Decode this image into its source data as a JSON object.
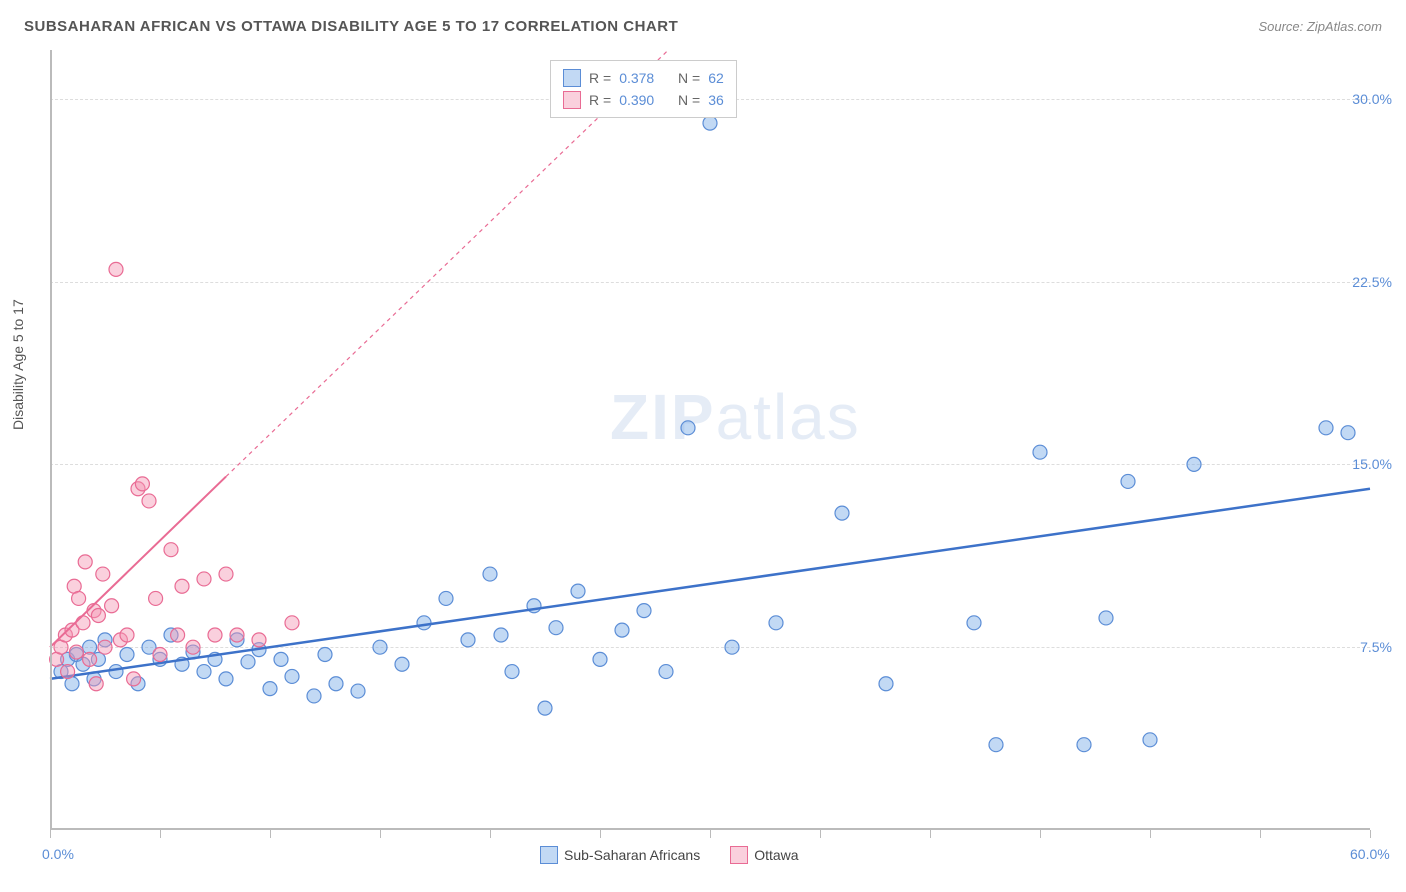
{
  "header": {
    "title": "SUBSAHARAN AFRICAN VS OTTAWA DISABILITY AGE 5 TO 17 CORRELATION CHART",
    "source_prefix": "Source: ",
    "source_name": "ZipAtlas.com"
  },
  "chart": {
    "type": "scatter",
    "ylabel": "Disability Age 5 to 17",
    "xlim": [
      0,
      60
    ],
    "ylim": [
      0,
      32
    ],
    "xtick_positions": [
      0,
      5,
      10,
      15,
      20,
      25,
      30,
      35,
      40,
      45,
      50,
      55,
      60
    ],
    "xtick_labels_shown": {
      "0": "0.0%",
      "60": "60.0%"
    },
    "ytick_positions": [
      7.5,
      15.0,
      22.5,
      30.0
    ],
    "ytick_labels": [
      "7.5%",
      "15.0%",
      "22.5%",
      "30.0%"
    ],
    "grid_color": "#dddddd",
    "axis_color": "#bbbbbb",
    "background_color": "#ffffff",
    "series": [
      {
        "name": "Sub-Saharan Africans",
        "marker_color_fill": "rgba(120,170,230,0.45)",
        "marker_color_stroke": "#5b8dd6",
        "marker_radius": 7,
        "trend_color": "#3d72c9",
        "trend_width": 2.5,
        "trend_dash": "none",
        "trend_p1": [
          0,
          6.2
        ],
        "trend_p2": [
          60,
          14.0
        ],
        "R": "0.378",
        "N": "62",
        "points": [
          [
            0.5,
            6.5
          ],
          [
            0.8,
            7.0
          ],
          [
            1.0,
            6.0
          ],
          [
            1.2,
            7.2
          ],
          [
            1.5,
            6.8
          ],
          [
            1.8,
            7.5
          ],
          [
            2.0,
            6.2
          ],
          [
            2.2,
            7.0
          ],
          [
            2.5,
            7.8
          ],
          [
            3.0,
            6.5
          ],
          [
            3.5,
            7.2
          ],
          [
            4.0,
            6.0
          ],
          [
            4.5,
            7.5
          ],
          [
            5.0,
            7.0
          ],
          [
            5.5,
            8.0
          ],
          [
            6.0,
            6.8
          ],
          [
            6.5,
            7.3
          ],
          [
            7.0,
            6.5
          ],
          [
            7.5,
            7.0
          ],
          [
            8.0,
            6.2
          ],
          [
            8.5,
            7.8
          ],
          [
            9.0,
            6.9
          ],
          [
            9.5,
            7.4
          ],
          [
            10.0,
            5.8
          ],
          [
            10.5,
            7.0
          ],
          [
            11.0,
            6.3
          ],
          [
            12.0,
            5.5
          ],
          [
            12.5,
            7.2
          ],
          [
            13.0,
            6.0
          ],
          [
            14.0,
            5.7
          ],
          [
            15.0,
            7.5
          ],
          [
            16.0,
            6.8
          ],
          [
            17.0,
            8.5
          ],
          [
            18.0,
            9.5
          ],
          [
            19.0,
            7.8
          ],
          [
            20.0,
            10.5
          ],
          [
            20.5,
            8.0
          ],
          [
            21.0,
            6.5
          ],
          [
            22.0,
            9.2
          ],
          [
            22.5,
            5.0
          ],
          [
            23.0,
            8.3
          ],
          [
            24.0,
            9.8
          ],
          [
            25.0,
            7.0
          ],
          [
            26.0,
            8.2
          ],
          [
            27.0,
            9.0
          ],
          [
            28.0,
            6.5
          ],
          [
            29.0,
            16.5
          ],
          [
            30.0,
            29.0
          ],
          [
            31.0,
            7.5
          ],
          [
            33.0,
            8.5
          ],
          [
            36.0,
            13.0
          ],
          [
            38.0,
            6.0
          ],
          [
            42.0,
            8.5
          ],
          [
            43.0,
            3.5
          ],
          [
            45.0,
            15.5
          ],
          [
            47.0,
            3.5
          ],
          [
            48.0,
            8.7
          ],
          [
            49.0,
            14.3
          ],
          [
            50.0,
            3.7
          ],
          [
            52.0,
            15.0
          ],
          [
            58.0,
            16.5
          ],
          [
            59.0,
            16.3
          ]
        ]
      },
      {
        "name": "Ottawa",
        "marker_color_fill": "rgba(245,150,180,0.45)",
        "marker_color_stroke": "#e96b94",
        "marker_radius": 7,
        "trend_color": "#e96b94",
        "trend_width": 2,
        "trend_dash": "none",
        "trend_p1": [
          0,
          7.5
        ],
        "trend_p2": [
          8,
          14.5
        ],
        "trend_ext_dash": "4 4",
        "trend_ext_p2": [
          35,
          38
        ],
        "R": "0.390",
        "N": "36",
        "points": [
          [
            0.3,
            7.0
          ],
          [
            0.5,
            7.5
          ],
          [
            0.7,
            8.0
          ],
          [
            0.8,
            6.5
          ],
          [
            1.0,
            8.2
          ],
          [
            1.1,
            10.0
          ],
          [
            1.2,
            7.3
          ],
          [
            1.3,
            9.5
          ],
          [
            1.5,
            8.5
          ],
          [
            1.6,
            11.0
          ],
          [
            1.8,
            7.0
          ],
          [
            2.0,
            9.0
          ],
          [
            2.1,
            6.0
          ],
          [
            2.2,
            8.8
          ],
          [
            2.4,
            10.5
          ],
          [
            2.5,
            7.5
          ],
          [
            2.8,
            9.2
          ],
          [
            3.0,
            23.0
          ],
          [
            3.2,
            7.8
          ],
          [
            3.5,
            8.0
          ],
          [
            3.8,
            6.2
          ],
          [
            4.0,
            14.0
          ],
          [
            4.2,
            14.2
          ],
          [
            4.5,
            13.5
          ],
          [
            4.8,
            9.5
          ],
          [
            5.0,
            7.2
          ],
          [
            5.5,
            11.5
          ],
          [
            5.8,
            8.0
          ],
          [
            6.0,
            10.0
          ],
          [
            6.5,
            7.5
          ],
          [
            7.0,
            10.3
          ],
          [
            7.5,
            8.0
          ],
          [
            8.0,
            10.5
          ],
          [
            8.5,
            8.0
          ],
          [
            9.5,
            7.8
          ],
          [
            11.0,
            8.5
          ]
        ]
      }
    ],
    "legend_top": {
      "row1": {
        "swatch_fill": "rgba(120,170,230,0.45)",
        "swatch_stroke": "#5b8dd6",
        "r_label": "R =",
        "r_val": "0.378",
        "n_label": "N =",
        "n_val": "62"
      },
      "row2": {
        "swatch_fill": "rgba(245,150,180,0.45)",
        "swatch_stroke": "#e96b94",
        "r_label": "R =",
        "r_val": "0.390",
        "n_label": "N =",
        "n_val": "36"
      }
    },
    "legend_bottom": [
      {
        "swatch_fill": "rgba(120,170,230,0.45)",
        "swatch_stroke": "#5b8dd6",
        "label": "Sub-Saharan Africans"
      },
      {
        "swatch_fill": "rgba(245,150,180,0.45)",
        "swatch_stroke": "#e96b94",
        "label": "Ottawa"
      }
    ]
  },
  "watermark": {
    "zip": "ZIP",
    "atlas": "atlas"
  }
}
